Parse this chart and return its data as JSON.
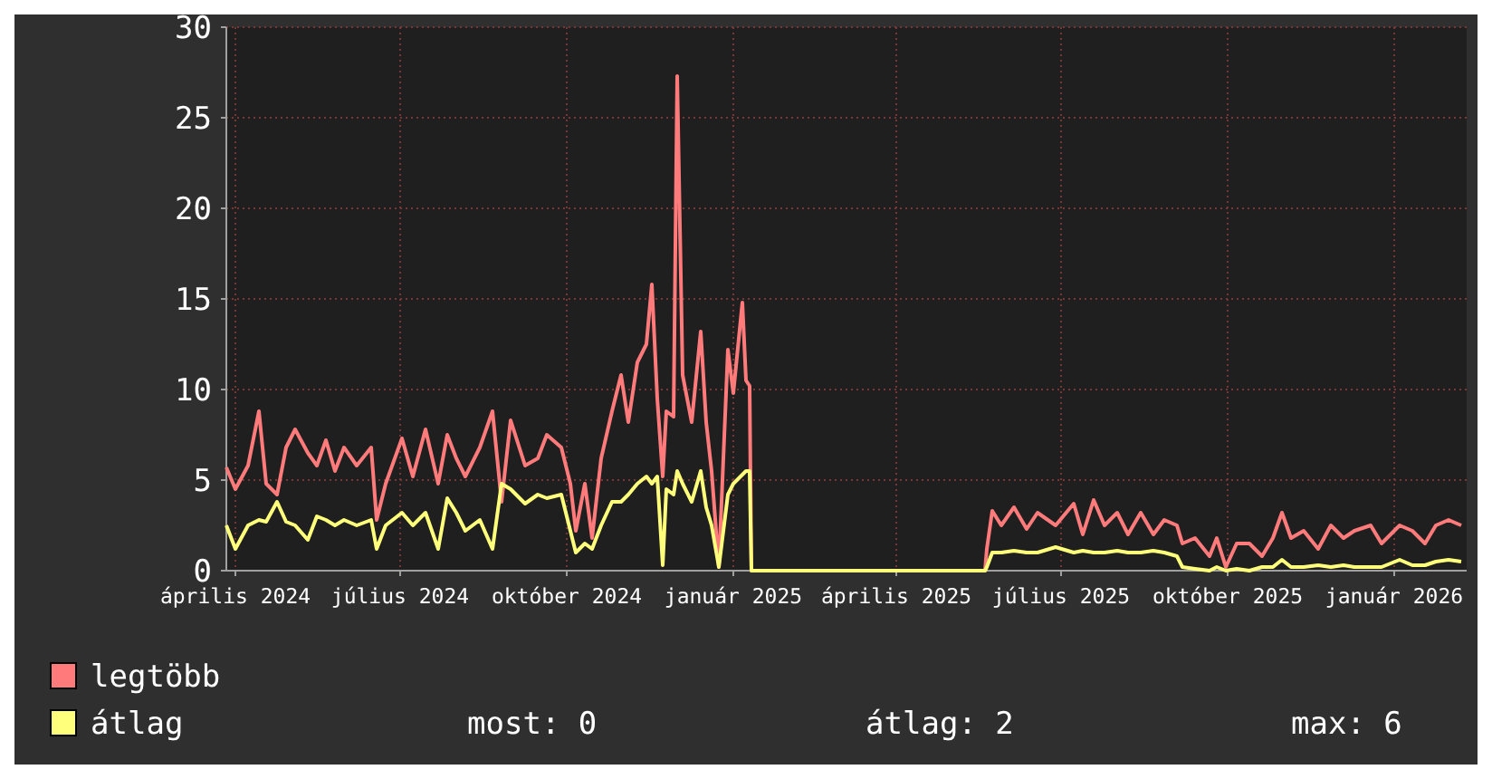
{
  "chart_data": {
    "type": "line",
    "xlim": [
      "2024-03-27",
      "2026-02-10"
    ],
    "ylim": [
      0,
      30
    ],
    "yticks": [
      0,
      5,
      10,
      15,
      20,
      25,
      30
    ],
    "xticks": [
      {
        "value": "2024-04-01",
        "label": "április 2024"
      },
      {
        "value": "2024-07-01",
        "label": "július 2024"
      },
      {
        "value": "2024-10-01",
        "label": "október 2024"
      },
      {
        "value": "2025-01-01",
        "label": "január 2025"
      },
      {
        "value": "2025-04-01",
        "label": "április 2025"
      },
      {
        "value": "2025-07-01",
        "label": "július 2025"
      },
      {
        "value": "2025-10-01",
        "label": "október 2025"
      },
      {
        "value": "2026-01-01",
        "label": "január 2026"
      }
    ],
    "grid": true,
    "legend": "bottom",
    "marker": "none",
    "line_style": "solid",
    "annotations": [
      "most: 0",
      "átlag: 2",
      "max: 6"
    ],
    "x": [
      "2024-03-27",
      "2024-04-01",
      "2024-04-08",
      "2024-04-14",
      "2024-04-18",
      "2024-04-24",
      "2024-04-29",
      "2024-05-04",
      "2024-05-11",
      "2024-05-16",
      "2024-05-21",
      "2024-05-26",
      "2024-05-31",
      "2024-06-07",
      "2024-06-15",
      "2024-06-18",
      "2024-06-23",
      "2024-07-02",
      "2024-07-08",
      "2024-07-15",
      "2024-07-22",
      "2024-07-27",
      "2024-08-01",
      "2024-08-06",
      "2024-08-14",
      "2024-08-21",
      "2024-08-26",
      "2024-08-31",
      "2024-09-08",
      "2024-09-15",
      "2024-09-20",
      "2024-09-28",
      "2024-10-03",
      "2024-10-06",
      "2024-10-11",
      "2024-10-15",
      "2024-10-20",
      "2024-10-26",
      "2024-10-31",
      "2024-11-04",
      "2024-11-09",
      "2024-11-14",
      "2024-11-17",
      "2024-11-20",
      "2024-11-23",
      "2024-11-25",
      "2024-11-29",
      "2024-12-01",
      "2024-12-04",
      "2024-12-09",
      "2024-12-14",
      "2024-12-17",
      "2024-12-20",
      "2024-12-24",
      "2024-12-29",
      "2025-01-01",
      "2025-01-06",
      "2025-01-08",
      "2025-01-10",
      "2025-01-11",
      "2025-01-12",
      "2025-05-20",
      "2025-05-21",
      "2025-05-24",
      "2025-05-29",
      "2025-06-05",
      "2025-06-12",
      "2025-06-18",
      "2025-06-28",
      "2025-07-08",
      "2025-07-13",
      "2025-07-19",
      "2025-07-25",
      "2025-08-01",
      "2025-08-07",
      "2025-08-14",
      "2025-08-21",
      "2025-08-27",
      "2025-09-03",
      "2025-09-06",
      "2025-09-13",
      "2025-09-21",
      "2025-09-25",
      "2025-09-30",
      "2025-10-06",
      "2025-10-13",
      "2025-10-20",
      "2025-10-26",
      "2025-10-31",
      "2025-11-05",
      "2025-11-12",
      "2025-11-20",
      "2025-11-27",
      "2025-12-04",
      "2025-12-10",
      "2025-12-19",
      "2025-12-25",
      "2026-01-04",
      "2026-01-11",
      "2026-01-18",
      "2026-01-24",
      "2026-01-31",
      "2026-02-07"
    ],
    "series": [
      {
        "name": "legtöbb",
        "color": "#ff7b7b",
        "values": [
          5.7,
          4.5,
          5.8,
          8.8,
          4.8,
          4.2,
          6.8,
          7.8,
          6.5,
          5.8,
          7.2,
          5.5,
          6.8,
          5.8,
          6.8,
          2.8,
          4.8,
          7.3,
          5.2,
          7.8,
          4.8,
          7.5,
          6.2,
          5.2,
          6.8,
          8.8,
          3.8,
          8.3,
          5.8,
          6.2,
          7.5,
          6.8,
          4.8,
          2.2,
          4.8,
          1.8,
          6.2,
          8.8,
          10.8,
          8.2,
          11.5,
          12.5,
          15.8,
          9.5,
          5.2,
          8.8,
          8.5,
          27.3,
          10.8,
          8.2,
          13.2,
          8.2,
          5.5,
          0.2,
          12.2,
          9.8,
          14.8,
          10.5,
          10.2,
          0,
          0,
          0,
          1.2,
          3.3,
          2.5,
          3.5,
          2.3,
          3.2,
          2.5,
          3.7,
          2.0,
          3.9,
          2.5,
          3.2,
          2.0,
          3.2,
          2.0,
          2.8,
          2.5,
          1.5,
          1.8,
          0.8,
          1.8,
          0.2,
          1.5,
          1.5,
          0.8,
          1.8,
          3.2,
          1.8,
          2.2,
          1.2,
          2.5,
          1.8,
          2.2,
          2.5,
          1.5,
          2.5,
          2.2,
          1.5,
          2.5,
          2.8,
          2.5
        ]
      },
      {
        "name": "átlag",
        "color": "#ffff7b",
        "values": [
          2.5,
          1.2,
          2.5,
          2.8,
          2.7,
          3.8,
          2.7,
          2.5,
          1.7,
          3.0,
          2.8,
          2.5,
          2.8,
          2.5,
          2.8,
          1.2,
          2.5,
          3.2,
          2.5,
          3.2,
          1.2,
          4.0,
          3.2,
          2.2,
          2.8,
          1.2,
          4.8,
          4.5,
          3.7,
          4.2,
          4.0,
          4.2,
          2.2,
          1.0,
          1.5,
          1.2,
          2.5,
          3.8,
          3.8,
          4.2,
          4.8,
          5.2,
          4.8,
          5.2,
          0.3,
          4.5,
          4.2,
          5.5,
          4.8,
          3.8,
          5.5,
          3.5,
          2.5,
          0.2,
          4.2,
          4.8,
          5.3,
          5.5,
          5.5,
          0,
          0,
          0,
          0.2,
          1.0,
          1.0,
          1.1,
          1.0,
          1.0,
          1.3,
          1.0,
          1.1,
          1.0,
          1.0,
          1.1,
          1.0,
          1.0,
          1.1,
          1.0,
          0.8,
          0.2,
          0.1,
          0.0,
          0.2,
          0.0,
          0.1,
          0.0,
          0.2,
          0.2,
          0.6,
          0.2,
          0.2,
          0.3,
          0.2,
          0.3,
          0.2,
          0.2,
          0.2,
          0.6,
          0.3,
          0.3,
          0.5,
          0.6,
          0.5
        ]
      }
    ]
  }
}
